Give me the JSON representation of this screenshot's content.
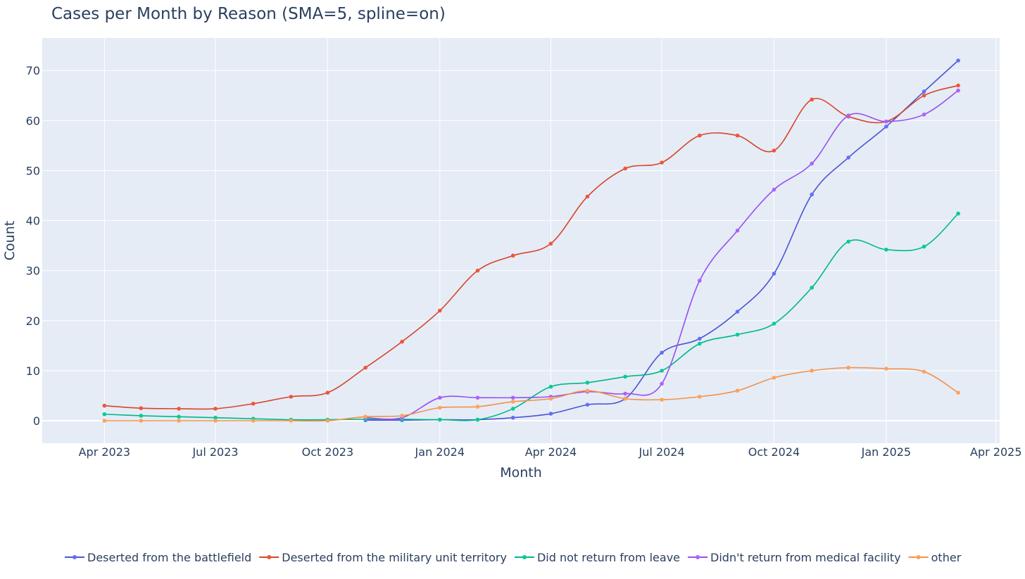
{
  "chart_data": {
    "type": "line",
    "title": "Cases per Month by Reason (SMA=5, spline=on)",
    "xlabel": "Month",
    "ylabel": "Count",
    "x_ticks": [
      "Apr 2023",
      "Jul 2023",
      "Oct 2023",
      "Jan 2024",
      "Apr 2024",
      "Jul 2024",
      "Oct 2024",
      "Jan 2025",
      "Apr 2025"
    ],
    "y_ticks": [
      "0",
      "10",
      "20",
      "30",
      "40",
      "50",
      "60",
      "70"
    ],
    "y_tick_values": [
      0,
      10,
      20,
      30,
      40,
      50,
      60,
      70
    ],
    "ylim": [
      -4.5,
      76.5
    ],
    "xlim": [
      "2023-02-09",
      "2025-04-04"
    ],
    "legend_position": "bottom",
    "x": [
      "2023-04-01",
      "2023-05-01",
      "2023-06-01",
      "2023-07-01",
      "2023-08-01",
      "2023-09-01",
      "2023-10-01",
      "2023-11-01",
      "2023-12-01",
      "2024-01-01",
      "2024-02-01",
      "2024-03-01",
      "2024-04-01",
      "2024-05-01",
      "2024-06-01",
      "2024-07-01",
      "2024-08-01",
      "2024-09-01",
      "2024-10-01",
      "2024-11-01",
      "2024-12-01",
      "2025-01-01",
      "2025-02-01",
      "2025-03-01"
    ],
    "series": [
      {
        "name": "Deserted from the battlefield",
        "color": "#636efa",
        "line_color": "#4a55d4",
        "x": [
          "2023-11-01",
          "2023-12-01",
          "2024-01-01",
          "2024-02-01",
          "2024-03-01",
          "2024-04-01",
          "2024-05-01",
          "2024-06-01",
          "2024-07-01",
          "2024-08-01",
          "2024-09-01",
          "2024-10-01",
          "2024-11-01",
          "2024-12-01",
          "2025-01-01",
          "2025-02-01",
          "2025-03-01"
        ],
        "values": [
          0.1,
          0.1,
          0.2,
          0.2,
          0.6,
          1.4,
          3.2,
          4.4,
          13.6,
          16.4,
          21.8,
          29.4,
          45.2,
          52.6,
          58.8,
          65.8,
          72.0
        ]
      },
      {
        "name": "Deserted from the military unit territory",
        "color": "#ef553b",
        "line_color": "#d9442a",
        "x": [
          "2023-04-01",
          "2023-05-01",
          "2023-06-01",
          "2023-07-01",
          "2023-08-01",
          "2023-09-01",
          "2023-10-01",
          "2023-11-01",
          "2023-12-01",
          "2024-01-01",
          "2024-02-01",
          "2024-03-01",
          "2024-04-01",
          "2024-05-01",
          "2024-06-01",
          "2024-07-01",
          "2024-08-01",
          "2024-09-01",
          "2024-10-01",
          "2024-11-01",
          "2024-12-01",
          "2025-01-01",
          "2025-02-01",
          "2025-03-01"
        ],
        "values": [
          3.0,
          2.5,
          2.4,
          2.4,
          3.4,
          4.8,
          5.6,
          10.6,
          15.8,
          22.0,
          30.0,
          33.0,
          35.4,
          44.8,
          50.4,
          51.6,
          57.0,
          57.0,
          54.0,
          64.2,
          60.8,
          59.8,
          65.0,
          67.0
        ]
      },
      {
        "name": "Did not return from leave",
        "color": "#00cc96",
        "line_color": "#00b884",
        "x": [
          "2023-04-01",
          "2023-05-01",
          "2023-06-01",
          "2023-07-01",
          "2023-08-01",
          "2023-09-01",
          "2023-10-01",
          "2023-11-01",
          "2023-12-01",
          "2024-01-01",
          "2024-02-01",
          "2024-03-01",
          "2024-04-01",
          "2024-05-01",
          "2024-06-01",
          "2024-07-01",
          "2024-08-01",
          "2024-09-01",
          "2024-10-01",
          "2024-11-01",
          "2024-12-01",
          "2025-01-01",
          "2025-02-01",
          "2025-03-01"
        ],
        "values": [
          1.3,
          1.0,
          0.8,
          0.6,
          0.4,
          0.2,
          0.2,
          0.3,
          0.3,
          0.2,
          0.2,
          2.4,
          6.8,
          7.6,
          8.8,
          10.0,
          15.4,
          17.2,
          19.4,
          26.6,
          35.8,
          34.2,
          34.8,
          41.4
        ]
      },
      {
        "name": "Didn't return from medical facility",
        "color": "#ab63fa",
        "line_color": "#9a4ef0",
        "x": [
          "2023-11-01",
          "2023-12-01",
          "2024-01-01",
          "2024-02-01",
          "2024-03-01",
          "2024-04-01",
          "2024-05-01",
          "2024-06-01",
          "2024-07-01",
          "2024-08-01",
          "2024-09-01",
          "2024-10-01",
          "2024-11-01",
          "2024-12-01",
          "2025-01-01",
          "2025-02-01",
          "2025-03-01"
        ],
        "values": [
          0.6,
          0.6,
          4.6,
          4.6,
          4.6,
          4.8,
          5.8,
          5.4,
          7.4,
          28.0,
          38.0,
          46.2,
          51.4,
          61.0,
          59.8,
          61.2,
          66.0
        ]
      },
      {
        "name": "other",
        "color": "#ffa15a",
        "line_color": "#f2914a",
        "x": [
          "2023-04-01",
          "2023-05-01",
          "2023-06-01",
          "2023-07-01",
          "2023-08-01",
          "2023-09-01",
          "2023-10-01",
          "2023-11-01",
          "2023-12-01",
          "2024-01-01",
          "2024-02-01",
          "2024-03-01",
          "2024-04-01",
          "2024-05-01",
          "2024-06-01",
          "2024-07-01",
          "2024-08-01",
          "2024-09-01",
          "2024-10-01",
          "2024-11-01",
          "2024-12-01",
          "2025-01-01",
          "2025-02-01",
          "2025-03-01"
        ],
        "values": [
          0.0,
          0.0,
          0.0,
          0.0,
          0.0,
          0.0,
          0.0,
          0.8,
          1.0,
          2.6,
          2.8,
          3.8,
          4.4,
          6.0,
          4.4,
          4.2,
          4.8,
          6.0,
          8.6,
          10.0,
          10.6,
          10.4,
          9.8,
          5.6
        ]
      }
    ],
    "colors": {
      "plot_background": "#e5ecf6",
      "grid": "#ffffff",
      "text": "#2a3f5f"
    }
  }
}
